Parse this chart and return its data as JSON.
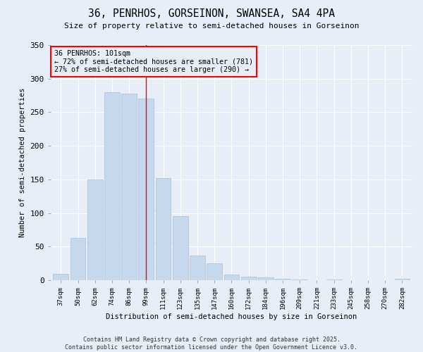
{
  "title": "36, PENRHOS, GORSEINON, SWANSEA, SA4 4PA",
  "subtitle": "Size of property relative to semi-detached houses in Gorseinon",
  "xlabel": "Distribution of semi-detached houses by size in Gorseinon",
  "ylabel": "Number of semi-detached properties",
  "categories": [
    "37sqm",
    "50sqm",
    "62sqm",
    "74sqm",
    "86sqm",
    "99sqm",
    "111sqm",
    "123sqm",
    "135sqm",
    "147sqm",
    "160sqm",
    "172sqm",
    "184sqm",
    "196sqm",
    "209sqm",
    "221sqm",
    "233sqm",
    "245sqm",
    "258sqm",
    "270sqm",
    "282sqm"
  ],
  "values": [
    10,
    63,
    150,
    280,
    278,
    270,
    152,
    96,
    37,
    25,
    9,
    5,
    4,
    2,
    1,
    0,
    1,
    0,
    0,
    0,
    2
  ],
  "bar_color": "#c5d8ed",
  "bar_edge_color": "#a8bfd8",
  "vline_x_index": 5,
  "vline_color": "red",
  "annotation_text": "36 PENRHOS: 101sqm\n← 72% of semi-detached houses are smaller (781)\n27% of semi-detached houses are larger (290) →",
  "annotation_box_color": "red",
  "ylim": [
    0,
    350
  ],
  "yticks": [
    0,
    50,
    100,
    150,
    200,
    250,
    300,
    350
  ],
  "bg_color": "#e8eef7",
  "grid_color": "#ffffff",
  "footer_text": "Contains HM Land Registry data © Crown copyright and database right 2025.\nContains public sector information licensed under the Open Government Licence v3.0."
}
